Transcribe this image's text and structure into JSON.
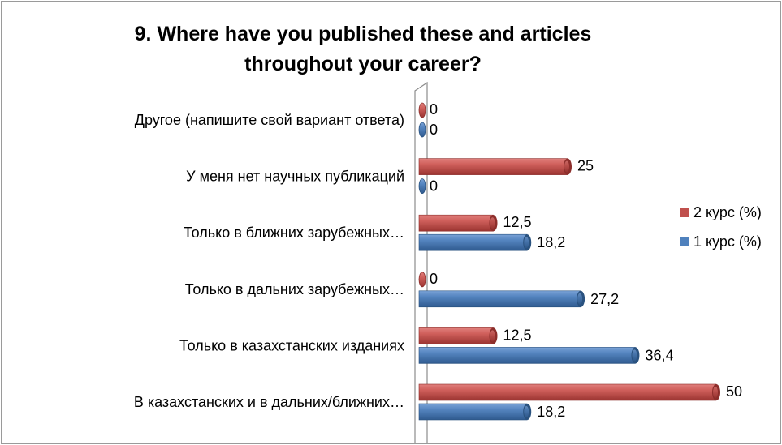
{
  "chart_data": {
    "type": "bar",
    "orientation": "horizontal",
    "title": "9. Where have you published these and articles throughout your career?",
    "title_lines": [
      "9. Where have you published these and articles",
      "throughout your career?"
    ],
    "categories": [
      "Другое (напишите свой вариант ответа)",
      "У меня нет научных публикаций",
      "Только в ближних зарубежных…",
      "Только в дальних зарубежных…",
      "Только в казахстанских изданиях",
      "В казахстанских и в дальних/ближних…"
    ],
    "series": [
      {
        "name": "2 курс (%)",
        "color": "#C0504D",
        "values": [
          0,
          25,
          12.5,
          0,
          12.5,
          50
        ],
        "labels": [
          "0",
          "25",
          "12,5",
          "0",
          "12,5",
          "50"
        ]
      },
      {
        "name": "1 курс (%)",
        "color": "#4F81BD",
        "values": [
          0,
          0,
          18.2,
          27.2,
          36.4,
          18.2
        ],
        "labels": [
          "0",
          "0",
          "18,2",
          "27,2",
          "36,4",
          "18,2"
        ]
      }
    ],
    "xlim": [
      0,
      50
    ],
    "grid": false,
    "legend_position": "right",
    "style": "3d-cylinder"
  }
}
